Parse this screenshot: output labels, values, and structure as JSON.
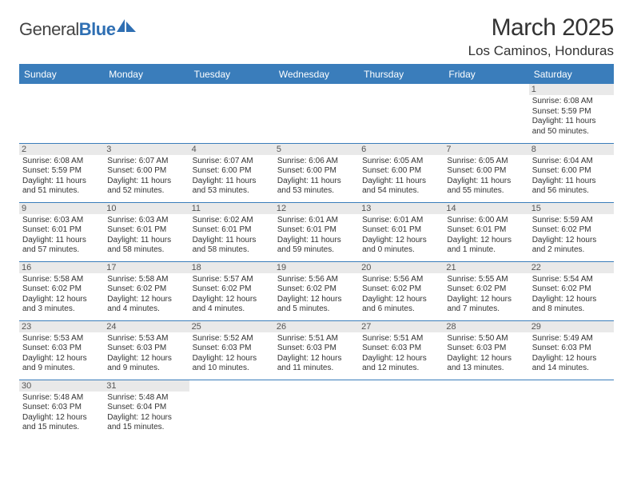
{
  "logo": {
    "word1": "General",
    "word2": "Blue"
  },
  "title": "March 2025",
  "location": "Los Caminos, Honduras",
  "colors": {
    "header_bg": "#3a7dbb",
    "header_text": "#ffffff",
    "rule": "#3a7dbb",
    "daynum_bg": "#e9e9e9",
    "text": "#333333"
  },
  "dayNames": [
    "Sunday",
    "Monday",
    "Tuesday",
    "Wednesday",
    "Thursday",
    "Friday",
    "Saturday"
  ],
  "weeks": [
    [
      {
        "empty": true
      },
      {
        "empty": true
      },
      {
        "empty": true
      },
      {
        "empty": true
      },
      {
        "empty": true
      },
      {
        "empty": true
      },
      {
        "n": "1",
        "sr": "Sunrise: 6:08 AM",
        "ss": "Sunset: 5:59 PM",
        "dl": "Daylight: 11 hours and 50 minutes."
      }
    ],
    [
      {
        "n": "2",
        "sr": "Sunrise: 6:08 AM",
        "ss": "Sunset: 5:59 PM",
        "dl": "Daylight: 11 hours and 51 minutes."
      },
      {
        "n": "3",
        "sr": "Sunrise: 6:07 AM",
        "ss": "Sunset: 6:00 PM",
        "dl": "Daylight: 11 hours and 52 minutes."
      },
      {
        "n": "4",
        "sr": "Sunrise: 6:07 AM",
        "ss": "Sunset: 6:00 PM",
        "dl": "Daylight: 11 hours and 53 minutes."
      },
      {
        "n": "5",
        "sr": "Sunrise: 6:06 AM",
        "ss": "Sunset: 6:00 PM",
        "dl": "Daylight: 11 hours and 53 minutes."
      },
      {
        "n": "6",
        "sr": "Sunrise: 6:05 AM",
        "ss": "Sunset: 6:00 PM",
        "dl": "Daylight: 11 hours and 54 minutes."
      },
      {
        "n": "7",
        "sr": "Sunrise: 6:05 AM",
        "ss": "Sunset: 6:00 PM",
        "dl": "Daylight: 11 hours and 55 minutes."
      },
      {
        "n": "8",
        "sr": "Sunrise: 6:04 AM",
        "ss": "Sunset: 6:00 PM",
        "dl": "Daylight: 11 hours and 56 minutes."
      }
    ],
    [
      {
        "n": "9",
        "sr": "Sunrise: 6:03 AM",
        "ss": "Sunset: 6:01 PM",
        "dl": "Daylight: 11 hours and 57 minutes."
      },
      {
        "n": "10",
        "sr": "Sunrise: 6:03 AM",
        "ss": "Sunset: 6:01 PM",
        "dl": "Daylight: 11 hours and 58 minutes."
      },
      {
        "n": "11",
        "sr": "Sunrise: 6:02 AM",
        "ss": "Sunset: 6:01 PM",
        "dl": "Daylight: 11 hours and 58 minutes."
      },
      {
        "n": "12",
        "sr": "Sunrise: 6:01 AM",
        "ss": "Sunset: 6:01 PM",
        "dl": "Daylight: 11 hours and 59 minutes."
      },
      {
        "n": "13",
        "sr": "Sunrise: 6:01 AM",
        "ss": "Sunset: 6:01 PM",
        "dl": "Daylight: 12 hours and 0 minutes."
      },
      {
        "n": "14",
        "sr": "Sunrise: 6:00 AM",
        "ss": "Sunset: 6:01 PM",
        "dl": "Daylight: 12 hours and 1 minute."
      },
      {
        "n": "15",
        "sr": "Sunrise: 5:59 AM",
        "ss": "Sunset: 6:02 PM",
        "dl": "Daylight: 12 hours and 2 minutes."
      }
    ],
    [
      {
        "n": "16",
        "sr": "Sunrise: 5:58 AM",
        "ss": "Sunset: 6:02 PM",
        "dl": "Daylight: 12 hours and 3 minutes."
      },
      {
        "n": "17",
        "sr": "Sunrise: 5:58 AM",
        "ss": "Sunset: 6:02 PM",
        "dl": "Daylight: 12 hours and 4 minutes."
      },
      {
        "n": "18",
        "sr": "Sunrise: 5:57 AM",
        "ss": "Sunset: 6:02 PM",
        "dl": "Daylight: 12 hours and 4 minutes."
      },
      {
        "n": "19",
        "sr": "Sunrise: 5:56 AM",
        "ss": "Sunset: 6:02 PM",
        "dl": "Daylight: 12 hours and 5 minutes."
      },
      {
        "n": "20",
        "sr": "Sunrise: 5:56 AM",
        "ss": "Sunset: 6:02 PM",
        "dl": "Daylight: 12 hours and 6 minutes."
      },
      {
        "n": "21",
        "sr": "Sunrise: 5:55 AM",
        "ss": "Sunset: 6:02 PM",
        "dl": "Daylight: 12 hours and 7 minutes."
      },
      {
        "n": "22",
        "sr": "Sunrise: 5:54 AM",
        "ss": "Sunset: 6:02 PM",
        "dl": "Daylight: 12 hours and 8 minutes."
      }
    ],
    [
      {
        "n": "23",
        "sr": "Sunrise: 5:53 AM",
        "ss": "Sunset: 6:03 PM",
        "dl": "Daylight: 12 hours and 9 minutes."
      },
      {
        "n": "24",
        "sr": "Sunrise: 5:53 AM",
        "ss": "Sunset: 6:03 PM",
        "dl": "Daylight: 12 hours and 9 minutes."
      },
      {
        "n": "25",
        "sr": "Sunrise: 5:52 AM",
        "ss": "Sunset: 6:03 PM",
        "dl": "Daylight: 12 hours and 10 minutes."
      },
      {
        "n": "26",
        "sr": "Sunrise: 5:51 AM",
        "ss": "Sunset: 6:03 PM",
        "dl": "Daylight: 12 hours and 11 minutes."
      },
      {
        "n": "27",
        "sr": "Sunrise: 5:51 AM",
        "ss": "Sunset: 6:03 PM",
        "dl": "Daylight: 12 hours and 12 minutes."
      },
      {
        "n": "28",
        "sr": "Sunrise: 5:50 AM",
        "ss": "Sunset: 6:03 PM",
        "dl": "Daylight: 12 hours and 13 minutes."
      },
      {
        "n": "29",
        "sr": "Sunrise: 5:49 AM",
        "ss": "Sunset: 6:03 PM",
        "dl": "Daylight: 12 hours and 14 minutes."
      }
    ],
    [
      {
        "n": "30",
        "sr": "Sunrise: 5:48 AM",
        "ss": "Sunset: 6:03 PM",
        "dl": "Daylight: 12 hours and 15 minutes."
      },
      {
        "n": "31",
        "sr": "Sunrise: 5:48 AM",
        "ss": "Sunset: 6:04 PM",
        "dl": "Daylight: 12 hours and 15 minutes."
      },
      {
        "empty": true
      },
      {
        "empty": true
      },
      {
        "empty": true
      },
      {
        "empty": true
      },
      {
        "empty": true
      }
    ]
  ]
}
